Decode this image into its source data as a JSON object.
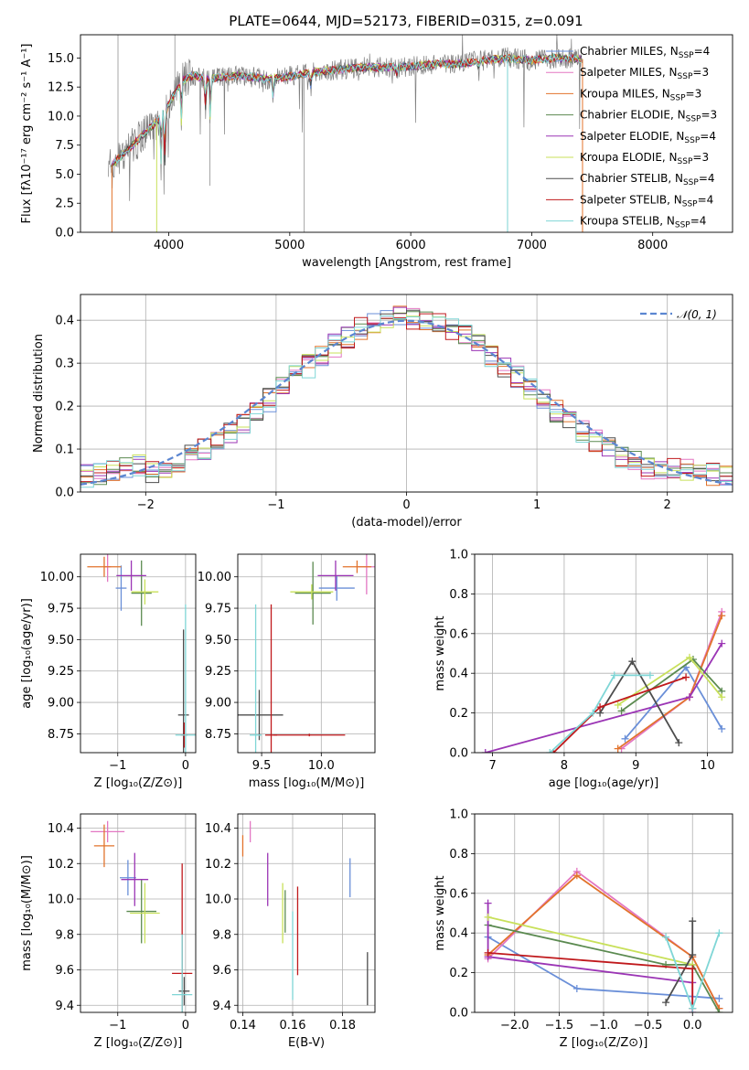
{
  "title": "PLATE=0644, MJD=52173, FIBERID=0315, z=0.091",
  "models": [
    {
      "name": "Chabrier MILES",
      "nssp": "4",
      "color": "#6a8fd8"
    },
    {
      "name": "Salpeter MILES",
      "nssp": "3",
      "color": "#e377c2"
    },
    {
      "name": "Kroupa MILES",
      "nssp": "3",
      "color": "#e2732c"
    },
    {
      "name": "Chabrier ELODIE",
      "nssp": "3",
      "color": "#5b8a50"
    },
    {
      "name": "Salpeter ELODIE",
      "nssp": "4",
      "color": "#9b35b5"
    },
    {
      "name": "Kroupa ELODIE",
      "nssp": "3",
      "color": "#c8e05a"
    },
    {
      "name": "Chabrier STELIB",
      "nssp": "4",
      "color": "#4d4d4d"
    },
    {
      "name": "Salpeter STELIB",
      "nssp": "4",
      "color": "#c0191c"
    },
    {
      "name": "Kroupa STELIB",
      "nssp": "4",
      "color": "#7fd6d6"
    }
  ],
  "data_color": "#808080",
  "chart_data": [
    {
      "id": "spectrum",
      "type": "line",
      "xlabel": "wavelength [Angstrom, rest frame]",
      "ylabel": "Flux [fλ10⁻¹⁷ erg cm⁻² s⁻¹ A⁻¹]",
      "xlim": [
        3270,
        8660
      ],
      "ylim": [
        0,
        17
      ],
      "xticks": [
        4000,
        5000,
        6000,
        7000,
        8000
      ],
      "yticks": [
        "0.0",
        "2.5",
        "5.0",
        "7.5",
        "10.0",
        "12.5",
        "15.0"
      ],
      "continuum_x": [
        3500,
        3600,
        3700,
        3800,
        3900,
        4000,
        4100,
        4200,
        4300,
        4400,
        4600,
        4800,
        5000,
        5200,
        5400,
        5600,
        5800,
        6000,
        6200,
        6400,
        6600,
        6800,
        7000,
        7200,
        7400
      ],
      "continuum_y": [
        5.5,
        6.5,
        7.5,
        8.5,
        9.5,
        11.0,
        13.0,
        13.5,
        13.2,
        13.3,
        13.5,
        13.2,
        13.4,
        13.8,
        14.0,
        14.2,
        14.2,
        14.3,
        14.5,
        14.5,
        14.8,
        15.0,
        14.8,
        15.0,
        14.9
      ]
    },
    {
      "id": "residuals",
      "type": "line",
      "xlabel": "(data-model)/error",
      "ylabel": "Normed distribution",
      "xlim": [
        -2.5,
        2.5
      ],
      "ylim": [
        0,
        0.46
      ],
      "xticks": [
        "−2",
        "−1",
        "0",
        "1",
        "2"
      ],
      "yticks": [
        "0.0",
        "0.1",
        "0.2",
        "0.3",
        "0.4"
      ],
      "legend": "𝒩(0, 1)",
      "legend_position": "top-right",
      "bin_width": 0.1
    },
    {
      "id": "age-vs-Z",
      "type": "scatter",
      "xlabel": "Z [log₁₀(Z/Z⊙)]",
      "ylabel": "age  [log₁₀(age/yr)]",
      "xlim": [
        -1.55,
        0.15
      ],
      "ylim": [
        8.6,
        10.18
      ],
      "xticks": [
        "−1",
        "0"
      ],
      "yticks": [
        "8.75",
        "9.00",
        "9.25",
        "9.50",
        "9.75",
        "10.00"
      ],
      "points": [
        {
          "model": 0,
          "x": -0.95,
          "y": 9.91,
          "xerr": 0.08,
          "yerr": 0.18
        },
        {
          "model": 1,
          "x": -1.15,
          "y": 10.08,
          "xerr": 0.05,
          "yerr": 0.12
        },
        {
          "model": 2,
          "x": -1.2,
          "y": 10.08,
          "xerr": 0.25,
          "yerr": 0.08
        },
        {
          "model": 3,
          "x": -0.65,
          "y": 9.87,
          "xerr": 0.15,
          "yerr": 0.26
        },
        {
          "model": 4,
          "x": -0.8,
          "y": 10.01,
          "xerr": 0.22,
          "yerr": 0.12
        },
        {
          "model": 5,
          "x": -0.6,
          "y": 9.88,
          "xerr": 0.2,
          "yerr": 0.1
        },
        {
          "model": 6,
          "x": -0.03,
          "y": 8.9,
          "xerr": 0.08,
          "yerr": 0.68
        },
        {
          "model": 7,
          "x": -0.02,
          "y": 8.74,
          "xerr": 0.05,
          "yerr": 0.1
        },
        {
          "model": 8,
          "x": 0.0,
          "y": 8.74,
          "xerr": 0.15,
          "yerr": 1.04
        }
      ]
    },
    {
      "id": "age-vs-mass",
      "type": "scatter",
      "xlabel": "mass [log₁₀(M/M⊙)]",
      "ylabel": "",
      "xlim": [
        9.3,
        10.45
      ],
      "ylim": [
        8.6,
        10.18
      ],
      "xticks": [
        "9.5",
        "10.0"
      ],
      "yticks": [
        "8.75",
        "9.00",
        "9.25",
        "9.50",
        "9.75",
        "10.00"
      ],
      "points": [
        {
          "model": 0,
          "x": 10.13,
          "y": 9.91,
          "xerr": 0.15,
          "yerr": 0.1
        },
        {
          "model": 1,
          "x": 10.38,
          "y": 10.08,
          "xerr": 0.07,
          "yerr": 0.22
        },
        {
          "model": 2,
          "x": 10.3,
          "y": 10.08,
          "xerr": 0.12,
          "yerr": 0.05
        },
        {
          "model": 3,
          "x": 9.93,
          "y": 9.87,
          "xerr": 0.15,
          "yerr": 0.25
        },
        {
          "model": 4,
          "x": 10.12,
          "y": 10.01,
          "xerr": 0.15,
          "yerr": 0.12
        },
        {
          "model": 5,
          "x": 9.92,
          "y": 9.88,
          "xerr": 0.18,
          "yerr": 0.06
        },
        {
          "model": 6,
          "x": 9.48,
          "y": 8.9,
          "xerr": 0.2,
          "yerr": 0.2
        },
        {
          "model": 7,
          "x": 9.58,
          "y": 8.74,
          "xerr": 0.05,
          "yerr": 1.04
        },
        {
          "model": 8,
          "x": 9.45,
          "y": 8.74,
          "xerr": 0.05,
          "yerr": 1.04
        },
        {
          "model": 7,
          "x": 9.9,
          "y": 8.74,
          "xerr": 0.3,
          "yerr": 0.01
        }
      ]
    },
    {
      "id": "weight-vs-age",
      "type": "line",
      "xlabel": "age  [log₁₀(age/yr)]",
      "ylabel": "mass weight",
      "xlim": [
        6.75,
        10.35
      ],
      "ylim": [
        0,
        1
      ],
      "xticks": [
        "7",
        "8",
        "9",
        "10"
      ],
      "yticks": [
        "0.0",
        "0.2",
        "0.4",
        "0.6",
        "0.8",
        "1.0"
      ],
      "series": [
        {
          "model": 0,
          "x": [
            8.85,
            9.7,
            10.2
          ],
          "y": [
            0.07,
            0.43,
            0.12
          ]
        },
        {
          "model": 1,
          "x": [
            8.8,
            9.75,
            10.2
          ],
          "y": [
            0.02,
            0.28,
            0.71
          ]
        },
        {
          "model": 2,
          "x": [
            8.75,
            9.75,
            10.2
          ],
          "y": [
            0.02,
            0.28,
            0.69
          ]
        },
        {
          "model": 3,
          "x": [
            8.8,
            9.8,
            10.2
          ],
          "y": [
            0.21,
            0.47,
            0.31
          ]
        },
        {
          "model": 4,
          "x": [
            6.9,
            9.75,
            10.2
          ],
          "y": [
            0.0,
            0.28,
            0.55
          ]
        },
        {
          "model": 5,
          "x": [
            8.75,
            9.75,
            10.2
          ],
          "y": [
            0.24,
            0.48,
            0.28
          ]
        },
        {
          "model": 6,
          "x": [
            8.5,
            8.95,
            9.6
          ],
          "y": [
            0.2,
            0.46,
            0.05
          ]
        },
        {
          "model": 7,
          "x": [
            7.85,
            8.5,
            9.7
          ],
          "y": [
            0.0,
            0.23,
            0.38
          ]
        },
        {
          "model": 8,
          "x": [
            7.8,
            8.4,
            8.7,
            9.2
          ],
          "y": [
            0.0,
            0.2,
            0.39,
            0.39
          ]
        }
      ]
    },
    {
      "id": "mass-vs-Z",
      "type": "scatter",
      "xlabel": "Z [log₁₀(Z/Z⊙)]",
      "ylabel": "mass [log₁₀(M/M⊙)]",
      "xlim": [
        -1.55,
        0.15
      ],
      "ylim": [
        9.36,
        10.48
      ],
      "xticks": [
        "−1",
        "0"
      ],
      "yticks": [
        "9.4",
        "9.6",
        "9.8",
        "10.0",
        "10.2",
        "10.4"
      ],
      "points": [
        {
          "model": 0,
          "x": -0.85,
          "y": 10.12,
          "xerr": 0.12,
          "yerr": 0.1
        },
        {
          "model": 1,
          "x": -1.15,
          "y": 10.38,
          "xerr": 0.25,
          "yerr": 0.06
        },
        {
          "model": 2,
          "x": -1.2,
          "y": 10.3,
          "xerr": 0.15,
          "yerr": 0.12
        },
        {
          "model": 3,
          "x": -0.65,
          "y": 9.93,
          "xerr": 0.22,
          "yerr": 0.18
        },
        {
          "model": 4,
          "x": -0.75,
          "y": 10.11,
          "xerr": 0.2,
          "yerr": 0.15
        },
        {
          "model": 5,
          "x": -0.6,
          "y": 9.92,
          "xerr": 0.22,
          "yerr": 0.17
        },
        {
          "model": 6,
          "x": -0.02,
          "y": 9.48,
          "xerr": 0.08,
          "yerr": 0.08
        },
        {
          "model": 7,
          "x": -0.05,
          "y": 9.58,
          "xerr": 0.15,
          "yerr": 0.62
        },
        {
          "model": 8,
          "x": -0.05,
          "y": 9.46,
          "xerr": 0.15,
          "yerr": 0.34
        }
      ]
    },
    {
      "id": "mass-vs-EBV",
      "type": "scatter",
      "xlabel": "E(B-V)",
      "ylabel": "",
      "xlim": [
        0.138,
        0.193
      ],
      "ylim": [
        9.36,
        10.48
      ],
      "xticks": [
        "0.14",
        "0.16",
        "0.18"
      ],
      "yticks": [
        "9.4",
        "9.6",
        "9.8",
        "10.0",
        "10.2",
        "10.4"
      ],
      "points": [
        {
          "model": 0,
          "x": 0.183,
          "y": 10.12,
          "xerr": 0,
          "yerr": 0.11
        },
        {
          "model": 1,
          "x": 0.143,
          "y": 10.38,
          "xerr": 0,
          "yerr": 0.06
        },
        {
          "model": 2,
          "x": 0.14,
          "y": 10.3,
          "xerr": 0,
          "yerr": 0.06
        },
        {
          "model": 3,
          "x": 0.157,
          "y": 9.93,
          "xerr": 0,
          "yerr": 0.12
        },
        {
          "model": 4,
          "x": 0.15,
          "y": 10.11,
          "xerr": 0,
          "yerr": 0.15
        },
        {
          "model": 5,
          "x": 0.156,
          "y": 9.92,
          "xerr": 0,
          "yerr": 0.17
        },
        {
          "model": 6,
          "x": 0.19,
          "y": 9.55,
          "xerr": 0,
          "yerr": 0.15
        },
        {
          "model": 7,
          "x": 0.162,
          "y": 9.82,
          "xerr": 0,
          "yerr": 0.25
        },
        {
          "model": 8,
          "x": 0.16,
          "y": 9.68,
          "xerr": 0,
          "yerr": 0.25
        }
      ]
    },
    {
      "id": "weight-vs-Z",
      "type": "line",
      "xlabel": "Z [log₁₀(Z/Z⊙)]",
      "ylabel": "mass weight",
      "xlim": [
        -2.45,
        0.45
      ],
      "ylim": [
        0,
        1
      ],
      "xticks": [
        "−2.0",
        "−1.5",
        "−1.0",
        "−0.5",
        "0.0"
      ],
      "yticks": [
        "0.0",
        "0.2",
        "0.4",
        "0.6",
        "0.8",
        "1.0"
      ],
      "series": [
        {
          "model": 0,
          "x": [
            -2.3,
            -1.3,
            0.0,
            0.3
          ],
          "y": [
            0.38,
            0.12,
            0.08,
            0.07
          ]
        },
        {
          "model": 1,
          "x": [
            -2.3,
            -1.3,
            0.0,
            0.3
          ],
          "y": [
            0.27,
            0.71,
            0.28,
            0.02
          ]
        },
        {
          "model": 2,
          "x": [
            -2.3,
            -1.3,
            0.0,
            0.3
          ],
          "y": [
            0.29,
            0.69,
            0.28,
            0.02
          ]
        },
        {
          "model": 3,
          "x": [
            -2.3,
            -0.3,
            0.0,
            0.3
          ],
          "y": [
            0.44,
            0.24,
            0.24,
            0.0
          ]
        },
        {
          "model": 4,
          "x": [
            -2.3,
            -2.3,
            0.0,
            0.0
          ],
          "y": [
            0.55,
            0.28,
            0.15,
            0.0
          ]
        },
        {
          "model": 5,
          "x": [
            -2.3,
            0.0
          ],
          "y": [
            0.48,
            0.24
          ]
        },
        {
          "model": 6,
          "x": [
            -0.3,
            0.0,
            0.0
          ],
          "y": [
            0.05,
            0.29,
            0.46
          ]
        },
        {
          "model": 7,
          "x": [
            -2.3,
            0.0,
            0.0
          ],
          "y": [
            0.3,
            0.22,
            0.02
          ]
        },
        {
          "model": 8,
          "x": [
            -0.3,
            0.0,
            0.3
          ],
          "y": [
            0.38,
            0.02,
            0.4
          ]
        }
      ]
    }
  ]
}
